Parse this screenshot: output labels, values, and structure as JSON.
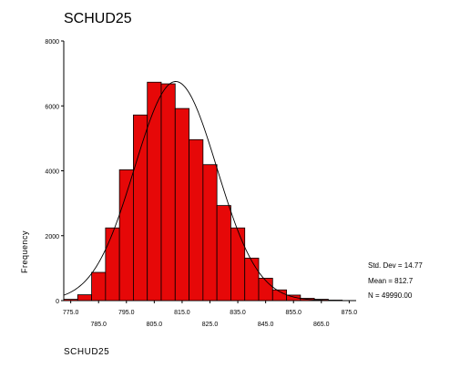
{
  "chart_data": {
    "type": "bar",
    "title": "SCHUD25",
    "xlabel": "SCHUD25",
    "ylabel": "Frequency",
    "x_tick_labels_top": [
      "775.0",
      "795.0",
      "815.0",
      "835.0",
      "855.0",
      "875.0"
    ],
    "x_tick_labels_bottom": [
      "785.0",
      "805.0",
      "825.0",
      "845.0",
      "865.0"
    ],
    "y_tick_labels": [
      "0",
      "2000",
      "4000",
      "6000",
      "8000"
    ],
    "xlim": [
      772.5,
      877.5
    ],
    "ylim": [
      0,
      8000
    ],
    "bin_width": 5,
    "bins": [
      {
        "center": 775.0,
        "value": 40
      },
      {
        "center": 780.0,
        "value": 180
      },
      {
        "center": 785.0,
        "value": 870
      },
      {
        "center": 790.0,
        "value": 2240
      },
      {
        "center": 795.0,
        "value": 4030
      },
      {
        "center": 800.0,
        "value": 5720
      },
      {
        "center": 805.0,
        "value": 6730
      },
      {
        "center": 810.0,
        "value": 6680
      },
      {
        "center": 815.0,
        "value": 5920
      },
      {
        "center": 820.0,
        "value": 4960
      },
      {
        "center": 825.0,
        "value": 4190
      },
      {
        "center": 830.0,
        "value": 2930
      },
      {
        "center": 835.0,
        "value": 2240
      },
      {
        "center": 840.0,
        "value": 1310
      },
      {
        "center": 845.0,
        "value": 690
      },
      {
        "center": 850.0,
        "value": 330
      },
      {
        "center": 855.0,
        "value": 170
      },
      {
        "center": 860.0,
        "value": 70
      },
      {
        "center": 865.0,
        "value": 40
      },
      {
        "center": 870.0,
        "value": 15
      }
    ],
    "normal_curve": {
      "mean": 812.7,
      "std_dev": 14.77,
      "n": 49990
    },
    "bar_color": "#e60808",
    "stats": {
      "std_dev": "Std. Dev = 14.77",
      "mean": "Mean = 812.7",
      "n": "N = 49990.00"
    }
  }
}
